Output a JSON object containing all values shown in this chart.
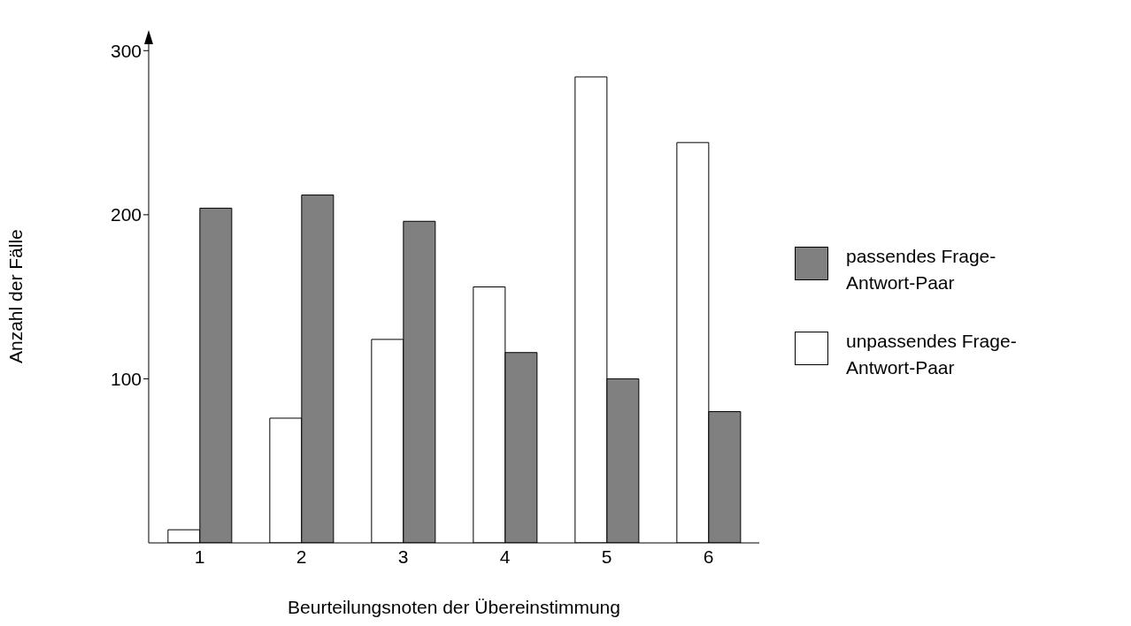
{
  "chart_data": {
    "type": "bar",
    "xlabel": "Beurteilungsnoten der Übereinstimmung",
    "ylabel": "Anzahl der Fälle",
    "categories": [
      "1",
      "2",
      "3",
      "4",
      "5",
      "6"
    ],
    "series": [
      {
        "name": "unpassendes Frage-Antwort-Paar",
        "color": "#ffffff",
        "values": [
          8,
          76,
          124,
          156,
          284,
          244
        ]
      },
      {
        "name": "passendes Frage-Antwort-Paar",
        "color": "#808080",
        "values": [
          204,
          212,
          196,
          116,
          100,
          80
        ]
      }
    ],
    "ylim": [
      0,
      305
    ],
    "yticks": [
      100,
      200,
      300
    ],
    "legend": "right"
  }
}
